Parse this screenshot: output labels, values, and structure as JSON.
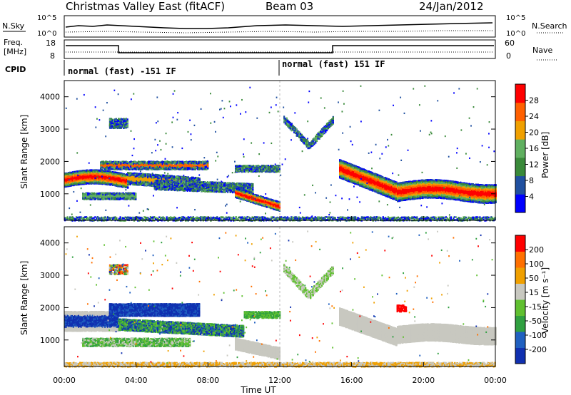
{
  "header": {
    "title": "Christmas Valley East (fitACF)",
    "beam": "Beam 03",
    "date": "24/Jan/2012"
  },
  "top_panel": {
    "left_label": "N.Sky",
    "right_label": "N.Search",
    "left_ticks": [
      "10^5",
      "10^0"
    ],
    "right_ticks": [
      "10^5",
      "10^0"
    ]
  },
  "freq_panel": {
    "left_label_1": "Freq.",
    "left_label_2": "[MHz]",
    "left_ticks": [
      "18",
      "8"
    ],
    "right_ticks": [
      "60",
      "0"
    ],
    "right_label": "Nave",
    "cpid_label": "CPID",
    "cpid_segments": [
      "normal (fast) -151 IF",
      "normal (fast) 151 IF"
    ]
  },
  "chart_data": [
    {
      "type": "heatmap",
      "name": "power-panel",
      "ylabel": "Slant Range [km]",
      "yticks": [
        "4000",
        "3000",
        "2000",
        "1000"
      ],
      "colorbar": {
        "label": "Power [dB]",
        "ticks": [
          "28",
          "24",
          "20",
          "16",
          "12",
          "8",
          "4"
        ],
        "colors": [
          "#0000ff",
          "#2050a0",
          "#3a8a3a",
          "#60b060",
          "#f0a000",
          "#ff6000",
          "#ff0000"
        ]
      }
    },
    {
      "type": "heatmap",
      "name": "velocity-panel",
      "ylabel": "Slant Range [km]",
      "yticks": [
        "4000",
        "3000",
        "2000",
        "1000"
      ],
      "xlabel": "Time UT",
      "xticks": [
        "00:00",
        "04:00",
        "08:00",
        "12:00",
        "16:00",
        "20:00",
        "00:00"
      ],
      "colorbar": {
        "label": "Velocity [m s⁻¹]",
        "ticks": [
          "200",
          "100",
          "50",
          "15",
          "-15",
          "-50",
          "-100",
          "-200"
        ],
        "colors": [
          "#1030b0",
          "#2060c0",
          "#30a040",
          "#60c030",
          "#c8c8c0",
          "#f0a000",
          "#ff7000",
          "#ff0000"
        ]
      }
    }
  ]
}
